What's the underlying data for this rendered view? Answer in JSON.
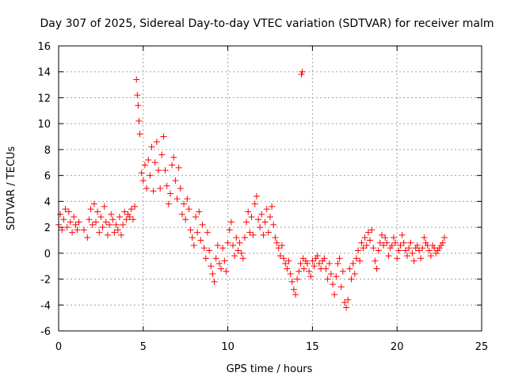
{
  "chart_data": {
    "type": "scatter",
    "title": "Day 307 of 2025, Sidereal Day-to-day VTEC variation (SDTVAR) for receiver malm",
    "xlabel": "GPS time / hours",
    "ylabel": "SDTVAR / TECUs",
    "xlim": [
      0,
      25
    ],
    "ylim": [
      -6,
      16
    ],
    "x_ticks": [
      0,
      5,
      10,
      15,
      20,
      25
    ],
    "y_ticks": [
      -6,
      -4,
      -2,
      0,
      2,
      4,
      6,
      8,
      10,
      12,
      14,
      16
    ],
    "grid": true,
    "marker": "+",
    "color": "#ff0000",
    "series": [
      {
        "name": "SDTVAR",
        "x": [
          0.0,
          0.1,
          0.2,
          0.3,
          0.4,
          0.5,
          0.6,
          0.7,
          0.8,
          0.9,
          1.0,
          1.1,
          1.2,
          1.5,
          1.7,
          1.8,
          1.9,
          2.0,
          2.1,
          2.2,
          2.3,
          2.4,
          2.5,
          2.6,
          2.7,
          2.8,
          2.9,
          3.0,
          3.1,
          3.2,
          3.3,
          3.4,
          3.5,
          3.6,
          3.7,
          3.8,
          3.9,
          4.0,
          4.1,
          4.2,
          4.3,
          4.4,
          4.5,
          4.6,
          4.65,
          4.7,
          4.75,
          4.8,
          4.9,
          5.0,
          5.1,
          5.2,
          5.3,
          5.4,
          5.5,
          5.6,
          5.7,
          5.8,
          5.9,
          6.0,
          6.1,
          6.2,
          6.3,
          6.4,
          6.5,
          6.6,
          6.7,
          6.8,
          6.9,
          7.0,
          7.1,
          7.2,
          7.3,
          7.4,
          7.5,
          7.6,
          7.7,
          7.8,
          7.9,
          8.0,
          8.1,
          8.2,
          8.3,
          8.4,
          8.5,
          8.6,
          8.7,
          8.8,
          8.9,
          9.0,
          9.1,
          9.2,
          9.3,
          9.4,
          9.5,
          9.6,
          9.7,
          9.8,
          9.9,
          10.0,
          10.1,
          10.2,
          10.3,
          10.4,
          10.5,
          10.6,
          10.7,
          10.8,
          10.9,
          11.0,
          11.1,
          11.2,
          11.3,
          11.4,
          11.5,
          11.6,
          11.7,
          11.8,
          11.9,
          12.0,
          12.1,
          12.2,
          12.3,
          12.4,
          12.5,
          12.6,
          12.7,
          12.8,
          12.9,
          13.0,
          13.1,
          13.2,
          13.3,
          13.4,
          13.5,
          13.6,
          13.7,
          13.8,
          13.9,
          14.0,
          14.1,
          14.2,
          14.3,
          14.35,
          14.4,
          14.45,
          14.5,
          14.6,
          14.7,
          14.8,
          14.9,
          15.0,
          15.1,
          15.2,
          15.3,
          15.4,
          15.5,
          15.6,
          15.7,
          15.8,
          15.9,
          16.0,
          16.1,
          16.2,
          16.3,
          16.4,
          16.5,
          16.6,
          16.7,
          16.8,
          16.9,
          17.0,
          17.1,
          17.2,
          17.3,
          17.4,
          17.5,
          17.6,
          17.7,
          17.8,
          17.9,
          18.0,
          18.1,
          18.2,
          18.3,
          18.4,
          18.5,
          18.6,
          18.7,
          18.8,
          18.9,
          19.0,
          19.1,
          19.2,
          19.3,
          19.4,
          19.5,
          19.6,
          19.7,
          19.8,
          19.9,
          20.0,
          20.1,
          20.2,
          20.3,
          20.4,
          20.5,
          20.6,
          20.7,
          20.8,
          20.9,
          21.0,
          21.1,
          21.2,
          21.3,
          21.4,
          21.5,
          21.6,
          21.7,
          21.8,
          21.9,
          22.0,
          22.1,
          22.2,
          22.3,
          22.4,
          22.5,
          22.6,
          22.7,
          22.8
        ],
        "y": [
          2.2,
          3.0,
          1.8,
          2.6,
          3.4,
          2.0,
          3.2,
          2.4,
          1.6,
          2.8,
          2.2,
          1.8,
          2.4,
          1.8,
          1.2,
          2.6,
          3.4,
          2.2,
          3.8,
          2.4,
          3.2,
          1.6,
          2.8,
          2.0,
          3.6,
          2.4,
          1.4,
          2.2,
          3.0,
          2.6,
          1.6,
          2.2,
          1.8,
          2.8,
          1.4,
          2.2,
          3.2,
          2.6,
          3.0,
          2.8,
          3.4,
          2.6,
          3.6,
          13.4,
          12.2,
          11.4,
          10.2,
          9.2,
          6.2,
          5.6,
          6.8,
          5.0,
          7.2,
          6.0,
          8.2,
          4.8,
          7.0,
          8.6,
          6.4,
          5.0,
          7.6,
          9.0,
          6.4,
          5.2,
          3.8,
          4.6,
          6.8,
          7.4,
          5.6,
          4.2,
          6.6,
          5.0,
          3.0,
          3.8,
          2.6,
          4.2,
          3.4,
          1.8,
          1.2,
          0.6,
          2.8,
          1.6,
          3.2,
          1.0,
          2.2,
          0.4,
          -0.4,
          1.6,
          0.2,
          -1.0,
          -1.6,
          -2.2,
          -0.4,
          0.6,
          -0.8,
          -1.2,
          0.4,
          -0.6,
          -1.4,
          0.8,
          1.8,
          2.4,
          0.6,
          -0.2,
          1.2,
          0.2,
          0.8,
          0.0,
          -0.4,
          1.2,
          2.4,
          3.2,
          1.6,
          2.8,
          1.4,
          3.8,
          4.4,
          2.6,
          2.0,
          3.0,
          1.4,
          2.4,
          3.4,
          1.6,
          2.8,
          3.6,
          2.2,
          1.2,
          0.8,
          0.4,
          -0.2,
          0.6,
          -0.4,
          -0.8,
          -1.2,
          -0.6,
          -1.6,
          -2.2,
          -2.8,
          -3.2,
          -2.0,
          -1.4,
          -0.8,
          13.8,
          14.0,
          -0.4,
          -1.2,
          -0.6,
          -0.8,
          -1.4,
          -1.8,
          -0.6,
          -1.0,
          -0.4,
          -0.2,
          -0.8,
          -1.2,
          -0.6,
          -0.4,
          -1.2,
          -2.0,
          -0.8,
          -1.6,
          -2.4,
          -3.2,
          -1.8,
          -0.8,
          -0.4,
          -2.6,
          -1.4,
          -3.8,
          -4.2,
          -3.6,
          -1.2,
          -2.0,
          -0.8,
          -1.6,
          -0.4,
          0.2,
          -0.6,
          0.8,
          0.4,
          1.2,
          0.6,
          1.6,
          1.0,
          1.8,
          0.4,
          -0.6,
          -1.2,
          0.2,
          0.8,
          1.4,
          0.6,
          1.2,
          0.8,
          -0.2,
          0.4,
          0.6,
          1.2,
          0.8,
          -0.4,
          0.2,
          0.6,
          1.4,
          0.8,
          0.2,
          -0.2,
          0.4,
          0.8,
          0.0,
          -0.6,
          0.4,
          0.6,
          0.2,
          -0.4,
          0.4,
          1.2,
          0.8,
          0.6,
          0.2,
          -0.2,
          0.6,
          0.4,
          0.0,
          0.2,
          0.4,
          0.6,
          0.8,
          1.2
        ]
      }
    ]
  }
}
